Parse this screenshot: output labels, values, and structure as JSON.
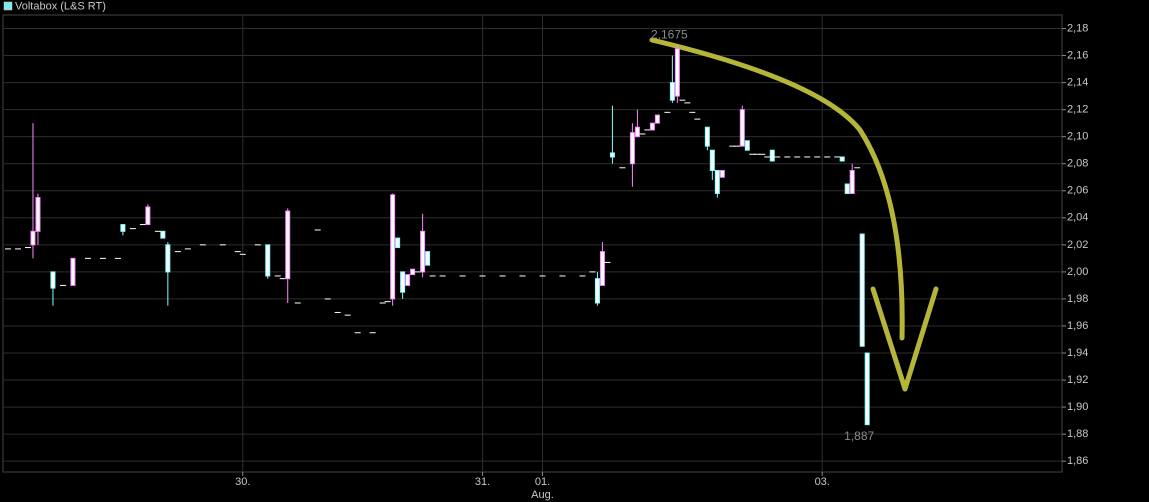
{
  "chart_data": {
    "type": "candlestick",
    "series_name": "Voltabox (L&S RT)",
    "legend_color": "#7fe8e8",
    "up_color": "#ff88ff",
    "down_color": "#80ffff",
    "flat_color": "#ffffff",
    "grid": true,
    "xlim": [
      0,
      212
    ],
    "xticks": [
      {
        "value": 48,
        "label": "30."
      },
      {
        "value": 96,
        "label": "31."
      },
      {
        "value": 108,
        "label": "01."
      },
      {
        "value": 164,
        "label": "03."
      }
    ],
    "month_label": "Aug.",
    "ylim": [
      1.852,
      2.19
    ],
    "yticks": [
      {
        "value": 1.86,
        "label": "1,86"
      },
      {
        "value": 1.88,
        "label": "1,88"
      },
      {
        "value": 1.9,
        "label": "1,90"
      },
      {
        "value": 1.92,
        "label": "1,92"
      },
      {
        "value": 1.94,
        "label": "1,94"
      },
      {
        "value": 1.96,
        "label": "1,96"
      },
      {
        "value": 1.98,
        "label": "1,98"
      },
      {
        "value": 2.0,
        "label": "2,00"
      },
      {
        "value": 2.02,
        "label": "2,02"
      },
      {
        "value": 2.04,
        "label": "2,04"
      },
      {
        "value": 2.06,
        "label": "2,06"
      },
      {
        "value": 2.08,
        "label": "2,08"
      },
      {
        "value": 2.1,
        "label": "2,10"
      },
      {
        "value": 2.12,
        "label": "2,12"
      },
      {
        "value": 2.14,
        "label": "2,14"
      },
      {
        "value": 2.16,
        "label": "2,16"
      },
      {
        "value": 2.18,
        "label": "2,18"
      }
    ],
    "annotations": [
      {
        "label": "2,1675",
        "value": 2.1675,
        "x": 135
      },
      {
        "label": "1,887",
        "value": 1.887,
        "x": 173
      }
    ],
    "x": [
      1,
      3,
      5,
      6,
      7,
      10,
      12,
      14,
      17,
      20,
      23,
      24,
      26,
      28,
      29,
      31,
      32,
      33,
      35,
      37,
      40,
      44,
      47,
      48,
      51,
      53,
      55,
      56,
      57,
      59,
      63,
      65,
      67,
      69,
      71,
      74,
      76,
      77,
      78,
      79,
      80,
      81,
      82,
      83,
      84,
      85,
      86,
      88,
      92,
      96,
      100,
      104,
      108,
      112,
      116,
      118,
      119,
      120,
      121,
      122,
      124,
      126,
      127,
      128,
      129,
      130,
      131,
      133,
      134,
      135,
      136,
      137,
      138,
      139,
      141,
      142,
      143,
      144,
      146,
      147,
      148,
      149,
      150,
      151,
      152,
      153,
      154,
      155,
      157,
      159,
      161,
      163,
      165,
      167,
      168,
      169,
      170,
      171,
      172,
      173
    ],
    "open": [
      2.017,
      2.017,
      2.018,
      2.02,
      2.03,
      2.0,
      1.99,
      1.99,
      2.01,
      2.01,
      2.01,
      2.035,
      2.032,
      2.035,
      2.035,
      2.03,
      2.03,
      2.02,
      2.015,
      2.017,
      2.02,
      2.02,
      2.015,
      2.013,
      2.02,
      2.02,
      1.997,
      1.995,
      1.995,
      1.977,
      2.031,
      1.98,
      1.97,
      1.968,
      1.955,
      1.955,
      1.977,
      1.978,
      1.98,
      2.025,
      2.0,
      1.99,
      1.998,
      2.0,
      2.0,
      2.015,
      1.997,
      1.997,
      1.997,
      1.997,
      1.997,
      1.997,
      1.997,
      1.997,
      1.997,
      2.0,
      1.995,
      1.99,
      2.007,
      2.088,
      2.077,
      2.08,
      2.1,
      2.102,
      2.105,
      2.105,
      2.11,
      2.118,
      2.14,
      2.13,
      2.127,
      2.125,
      2.118,
      2.113,
      2.107,
      2.09,
      2.075,
      2.07,
      2.093,
      2.093,
      2.093,
      2.097,
      2.087,
      2.087,
      2.087,
      2.085,
      2.09,
      2.085,
      2.085,
      2.085,
      2.085,
      2.085,
      2.085,
      2.085,
      2.085,
      2.065,
      2.058,
      2.077,
      2.028,
      1.94
    ],
    "high": [
      2.017,
      2.017,
      2.018,
      2.11,
      2.058,
      2.0,
      1.99,
      2.01,
      2.01,
      2.01,
      2.01,
      2.035,
      2.032,
      2.035,
      2.05,
      2.03,
      2.03,
      2.022,
      2.015,
      2.017,
      2.02,
      2.02,
      2.015,
      2.013,
      2.02,
      2.02,
      1.997,
      1.995,
      2.047,
      1.977,
      2.031,
      1.98,
      1.97,
      1.968,
      1.955,
      1.955,
      1.977,
      1.978,
      2.058,
      2.025,
      2.0,
      1.998,
      2.002,
      2.0,
      2.043,
      2.015,
      1.997,
      1.997,
      1.997,
      1.997,
      1.997,
      1.997,
      1.997,
      1.997,
      1.997,
      2.0,
      2.0,
      2.022,
      2.007,
      2.123,
      2.077,
      2.11,
      2.12,
      2.102,
      2.105,
      2.11,
      2.116,
      2.118,
      2.16,
      2.1675,
      2.127,
      2.125,
      2.118,
      2.113,
      2.107,
      2.09,
      2.075,
      2.075,
      2.093,
      2.093,
      2.123,
      2.097,
      2.087,
      2.087,
      2.087,
      2.085,
      2.09,
      2.085,
      2.085,
      2.085,
      2.085,
      2.085,
      2.085,
      2.085,
      2.085,
      2.065,
      2.08,
      2.077,
      2.028,
      1.94
    ],
    "low": [
      2.017,
      2.017,
      2.018,
      2.01,
      2.02,
      1.975,
      1.99,
      1.99,
      2.01,
      2.01,
      2.01,
      2.027,
      2.032,
      2.035,
      2.035,
      2.03,
      2.025,
      1.975,
      2.015,
      2.017,
      2.02,
      2.02,
      2.015,
      2.013,
      2.02,
      1.995,
      1.997,
      1.995,
      1.977,
      1.977,
      2.031,
      1.98,
      1.97,
      1.968,
      1.955,
      1.955,
      1.977,
      1.978,
      1.975,
      2.018,
      1.98,
      1.99,
      1.998,
      2.0,
      1.996,
      2.005,
      1.997,
      1.997,
      1.997,
      1.997,
      1.997,
      1.997,
      1.997,
      1.997,
      1.997,
      2.0,
      1.975,
      1.99,
      2.007,
      2.08,
      2.077,
      2.063,
      2.1,
      2.102,
      2.105,
      2.105,
      2.11,
      2.118,
      2.125,
      2.125,
      2.127,
      2.125,
      2.118,
      2.113,
      2.09,
      2.068,
      2.055,
      2.07,
      2.093,
      2.093,
      2.093,
      2.09,
      2.087,
      2.087,
      2.087,
      2.085,
      2.082,
      2.085,
      2.085,
      2.085,
      2.085,
      2.085,
      2.085,
      2.085,
      2.082,
      2.058,
      2.058,
      2.077,
      1.945,
      1.887
    ],
    "close": [
      2.017,
      2.017,
      2.018,
      2.03,
      2.055,
      1.988,
      1.99,
      2.01,
      2.01,
      2.01,
      2.01,
      2.03,
      2.032,
      2.035,
      2.048,
      2.03,
      2.025,
      2.0,
      2.015,
      2.017,
      2.02,
      2.02,
      2.015,
      2.013,
      2.02,
      1.997,
      1.997,
      1.995,
      2.045,
      1.977,
      2.031,
      1.98,
      1.97,
      1.968,
      1.955,
      1.955,
      1.977,
      1.978,
      2.057,
      2.018,
      1.985,
      1.998,
      2.002,
      2.0,
      2.03,
      2.005,
      1.997,
      1.997,
      1.997,
      1.997,
      1.997,
      1.997,
      1.997,
      1.997,
      1.997,
      2.0,
      1.977,
      2.015,
      2.007,
      2.085,
      2.077,
      2.103,
      2.107,
      2.102,
      2.105,
      2.11,
      2.116,
      2.118,
      2.127,
      2.165,
      2.127,
      2.125,
      2.118,
      2.113,
      2.093,
      2.075,
      2.058,
      2.075,
      2.093,
      2.093,
      2.12,
      2.09,
      2.087,
      2.087,
      2.087,
      2.085,
      2.082,
      2.085,
      2.085,
      2.085,
      2.085,
      2.085,
      2.085,
      2.085,
      2.082,
      2.058,
      2.075,
      2.077,
      1.945,
      1.887
    ]
  }
}
